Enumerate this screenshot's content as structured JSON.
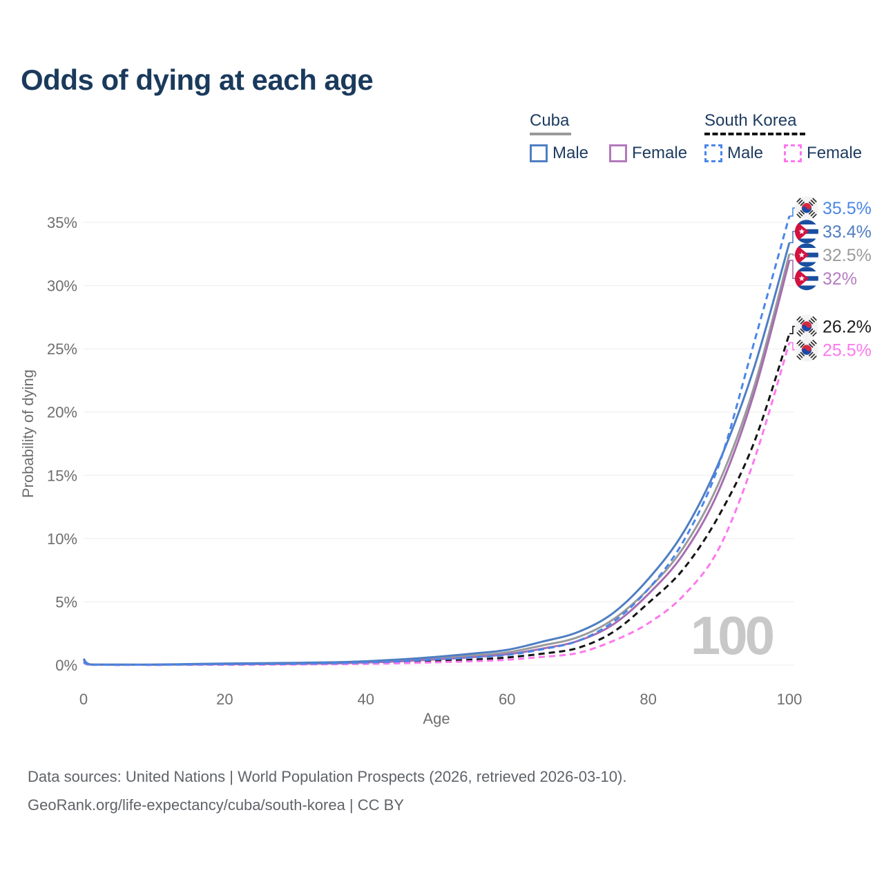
{
  "header": {
    "title": "Odds of dying at each age"
  },
  "legend": {
    "groups": [
      {
        "name": "Cuba",
        "line_style": "solid",
        "underline_color": "#9a9a9a",
        "items": [
          {
            "label": "Male",
            "color": "#4f7ec2"
          },
          {
            "label": "Female",
            "color": "#b478bd"
          }
        ]
      },
      {
        "name": "South Korea",
        "line_style": "dashed",
        "underline_color": "#141414",
        "items": [
          {
            "label": "Male",
            "color": "#4a86e8"
          },
          {
            "label": "Female",
            "color": "#fc78ee"
          }
        ]
      }
    ]
  },
  "chart_data": {
    "type": "line",
    "title": "Odds of dying at each age",
    "xlabel": "Age",
    "ylabel": "Probability of dying",
    "xlim": [
      0,
      100
    ],
    "ylim_pct": [
      0,
      36
    ],
    "x_ticks": [
      0,
      20,
      40,
      60,
      80,
      100
    ],
    "y_ticks_pct": [
      0,
      5,
      10,
      15,
      20,
      25,
      30,
      35
    ],
    "grid": "horizontal",
    "legend_position": "top-right",
    "watermark": "100",
    "x": [
      0,
      1,
      5,
      10,
      15,
      20,
      25,
      30,
      35,
      40,
      45,
      50,
      55,
      60,
      65,
      70,
      75,
      80,
      85,
      90,
      95,
      100
    ],
    "series": [
      {
        "name": "South Korea Male",
        "country": "south-korea",
        "sex": "male",
        "line": "dashed",
        "color": "#4a86e8",
        "label_color": "#4a86e8",
        "end_label": "35.5%",
        "values": [
          0.25,
          0.03,
          0.02,
          0.02,
          0.04,
          0.06,
          0.08,
          0.1,
          0.14,
          0.2,
          0.3,
          0.45,
          0.6,
          0.8,
          1.25,
          1.9,
          3.4,
          6.0,
          9.8,
          15.8,
          25.5,
          35.5
        ]
      },
      {
        "name": "Cuba Male",
        "country": "cuba",
        "sex": "male",
        "line": "solid",
        "color": "#4f7ec2",
        "label_color": "#4f7ec2",
        "end_label": "33.4%",
        "values": [
          0.5,
          0.05,
          0.04,
          0.04,
          0.08,
          0.12,
          0.15,
          0.18,
          0.22,
          0.3,
          0.45,
          0.65,
          0.9,
          1.2,
          1.85,
          2.6,
          4.1,
          6.8,
          10.5,
          16.0,
          23.5,
          33.4
        ]
      },
      {
        "name": "Cuba Both sexes",
        "country": "cuba",
        "sex": "both",
        "line": "solid",
        "color": "#9b9b9b",
        "label_color": "#9b9b9b",
        "end_label": "32.5%",
        "values": [
          0.45,
          0.045,
          0.035,
          0.035,
          0.06,
          0.09,
          0.11,
          0.13,
          0.17,
          0.25,
          0.37,
          0.55,
          0.75,
          1.0,
          1.55,
          2.2,
          3.6,
          6.0,
          9.3,
          14.4,
          22.0,
          32.5
        ]
      },
      {
        "name": "Cuba Female",
        "country": "cuba",
        "sex": "female",
        "line": "solid",
        "color": "#a76db1",
        "label_color": "#b57cc1",
        "end_label": "32%",
        "values": [
          0.4,
          0.04,
          0.03,
          0.03,
          0.05,
          0.07,
          0.08,
          0.1,
          0.13,
          0.2,
          0.3,
          0.45,
          0.62,
          0.85,
          1.3,
          1.9,
          3.2,
          5.6,
          8.8,
          13.8,
          21.5,
          32.0
        ]
      },
      {
        "name": "South Korea Both sexes",
        "country": "south-korea",
        "sex": "both",
        "line": "dashed",
        "color": "#141414",
        "label_color": "#1c1c1c",
        "end_label": "26.2%",
        "values": [
          0.22,
          0.02,
          0.015,
          0.015,
          0.03,
          0.04,
          0.05,
          0.07,
          0.1,
          0.14,
          0.2,
          0.3,
          0.42,
          0.6,
          0.9,
          1.35,
          2.6,
          4.9,
          7.6,
          11.8,
          17.6,
          26.2
        ]
      },
      {
        "name": "South Korea Female",
        "country": "south-korea",
        "sex": "female",
        "line": "dashed",
        "color": "#fc78ee",
        "label_color": "#fc78ee",
        "end_label": "25.5%",
        "values": [
          0.2,
          0.02,
          0.01,
          0.01,
          0.02,
          0.03,
          0.04,
          0.05,
          0.07,
          0.1,
          0.15,
          0.22,
          0.3,
          0.42,
          0.65,
          0.95,
          1.9,
          3.3,
          5.5,
          9.2,
          16.2,
          25.5
        ]
      }
    ]
  },
  "footer": {
    "line1": "Data sources: United Nations | World Population Prospects (2026, retrieved 2026-03-10).",
    "line2": "GeoRank.org/life-expectancy/cuba/south-korea | CC BY"
  }
}
